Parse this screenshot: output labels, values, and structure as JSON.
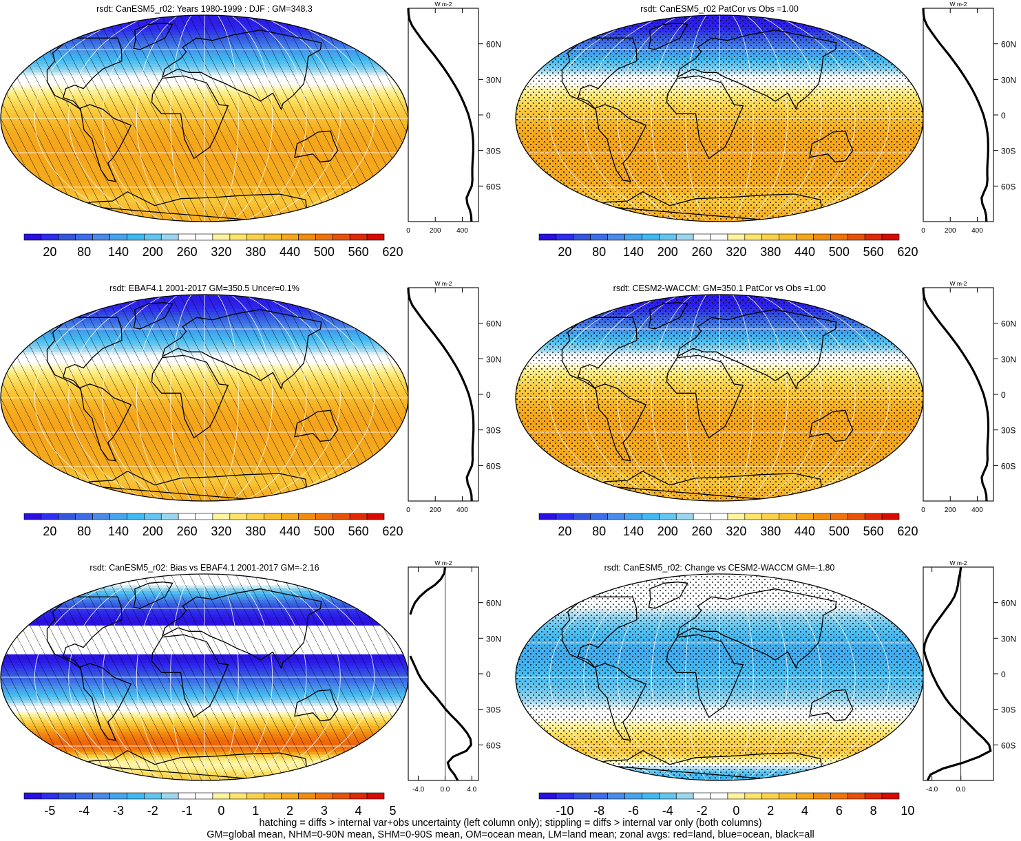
{
  "colors": {
    "abs_palette": [
      "#2a10e0",
      "#2e2ef0",
      "#3455dd",
      "#3b6ee8",
      "#4a8ae8",
      "#45a4ec",
      "#40b8f0",
      "#62c6f0",
      "#9cd6ee",
      "#ffffff",
      "#ffffff",
      "#fff3a0",
      "#fde46a",
      "#fad24a",
      "#f8bf30",
      "#f5a81c",
      "#f28c10",
      "#f0720a",
      "#e85208",
      "#e02a06",
      "#d70a04"
    ],
    "diff_palette": [
      "#2a10e0",
      "#2e2ef0",
      "#3455dd",
      "#3b6ee8",
      "#4a8ae8",
      "#45a4ec",
      "#40b8f0",
      "#62c6f0",
      "#9cd6ee",
      "#ffffff",
      "#ffffff",
      "#fff3a0",
      "#fde46a",
      "#fad24a",
      "#f8bf30",
      "#f5a81c",
      "#f28c10",
      "#f0720a",
      "#e85208",
      "#e02a06",
      "#d70a04"
    ]
  },
  "chart_data": [
    {
      "id": "model",
      "type": "heatmap",
      "title": "rsdt: CanESM5_r02: Years 1980-1999 : DJF : GM=348.3",
      "overlay": "hatching",
      "colorbar": {
        "ticks": [
          "20",
          "80",
          "140",
          "200",
          "260",
          "320",
          "380",
          "440",
          "500",
          "560",
          "620"
        ],
        "min": -10,
        "max": 640
      },
      "zonal": {
        "units": "W m-2",
        "x_ticks": [
          "0",
          "200",
          "400"
        ],
        "xlim": [
          0,
          520
        ],
        "y_ticks": [
          "60N",
          "30N",
          "0",
          "30S",
          "60S"
        ],
        "lat": [
          90,
          85,
          80,
          75,
          70,
          65,
          60,
          55,
          50,
          45,
          40,
          35,
          30,
          25,
          20,
          15,
          10,
          5,
          0,
          -5,
          -10,
          -15,
          -20,
          -25,
          -30,
          -35,
          -40,
          -45,
          -50,
          -55,
          -60,
          -65,
          -70,
          -75,
          -80,
          -85,
          -90
        ],
        "values": [
          0,
          2,
          10,
          30,
          60,
          92,
          125,
          160,
          195,
          228,
          260,
          290,
          318,
          345,
          370,
          392,
          412,
          430,
          446,
          458,
          468,
          475,
          479,
          481,
          481,
          479,
          476,
          474,
          474,
          475,
          470,
          450,
          432,
          438,
          456,
          466,
          468
        ]
      }
    },
    {
      "id": "model_vs_cesm_map",
      "type": "heatmap",
      "title": "rsdt: CanESM5_r02 PatCor vs Obs =1.00",
      "overlay": "stippling",
      "colorbar": {
        "ticks": [
          "20",
          "80",
          "140",
          "200",
          "260",
          "320",
          "380",
          "440",
          "500",
          "560",
          "620"
        ],
        "min": -10,
        "max": 640
      },
      "zonal": {
        "units": "W m-2",
        "x_ticks": [
          "0",
          "200",
          "400"
        ],
        "xlim": [
          0,
          520
        ],
        "y_ticks": [
          "60N",
          "30N",
          "0",
          "30S",
          "60S"
        ],
        "lat": [
          90,
          85,
          80,
          75,
          70,
          65,
          60,
          55,
          50,
          45,
          40,
          35,
          30,
          25,
          20,
          15,
          10,
          5,
          0,
          -5,
          -10,
          -15,
          -20,
          -25,
          -30,
          -35,
          -40,
          -45,
          -50,
          -55,
          -60,
          -65,
          -70,
          -75,
          -80,
          -85,
          -90
        ],
        "values": [
          0,
          2,
          10,
          30,
          60,
          92,
          125,
          160,
          195,
          228,
          260,
          290,
          318,
          345,
          370,
          392,
          412,
          430,
          446,
          458,
          468,
          475,
          479,
          481,
          481,
          479,
          476,
          474,
          474,
          475,
          470,
          450,
          432,
          438,
          456,
          466,
          468
        ]
      }
    },
    {
      "id": "obs",
      "type": "heatmap",
      "title": "rsdt: EBAF4.1 2001-2017 GM=350.5 Uncer=0.1%",
      "overlay": "hatching",
      "colorbar": {
        "ticks": [
          "20",
          "80",
          "140",
          "200",
          "260",
          "320",
          "380",
          "440",
          "500",
          "560",
          "620"
        ],
        "min": -10,
        "max": 640
      },
      "zonal": {
        "units": "W m-2",
        "x_ticks": [
          "0",
          "200",
          "400"
        ],
        "xlim": [
          0,
          520
        ],
        "y_ticks": [
          "60N",
          "30N",
          "0",
          "30S",
          "60S"
        ],
        "lat": [
          90,
          85,
          80,
          75,
          70,
          65,
          60,
          55,
          50,
          45,
          40,
          35,
          30,
          25,
          20,
          15,
          10,
          5,
          0,
          -5,
          -10,
          -15,
          -20,
          -25,
          -30,
          -35,
          -40,
          -45,
          -50,
          -55,
          -60,
          -65,
          -70,
          -75,
          -80,
          -85,
          -90
        ],
        "values": [
          0,
          2,
          11,
          31,
          62,
          94,
          127,
          162,
          197,
          230,
          262,
          292,
          320,
          347,
          372,
          394,
          414,
          432,
          448,
          460,
          470,
          477,
          481,
          483,
          483,
          481,
          478,
          476,
          476,
          477,
          472,
          452,
          434,
          440,
          458,
          468,
          470
        ]
      }
    },
    {
      "id": "ref_model",
      "type": "heatmap",
      "title": "rsdt: CESM2-WACCM: GM=350.1 PatCor vs Obs =1.00",
      "overlay": "stippling",
      "colorbar": {
        "ticks": [
          "20",
          "80",
          "140",
          "200",
          "260",
          "320",
          "380",
          "440",
          "500",
          "560",
          "620"
        ],
        "min": -10,
        "max": 640
      },
      "zonal": {
        "units": "W m-2",
        "x_ticks": [
          "0",
          "200",
          "400"
        ],
        "xlim": [
          0,
          520
        ],
        "y_ticks": [
          "60N",
          "30N",
          "0",
          "30S",
          "60S"
        ],
        "lat": [
          90,
          85,
          80,
          75,
          70,
          65,
          60,
          55,
          50,
          45,
          40,
          35,
          30,
          25,
          20,
          15,
          10,
          5,
          0,
          -5,
          -10,
          -15,
          -20,
          -25,
          -30,
          -35,
          -40,
          -45,
          -50,
          -55,
          -60,
          -65,
          -70,
          -75,
          -80,
          -85,
          -90
        ],
        "values": [
          0,
          2,
          11,
          31,
          61,
          93,
          126,
          161,
          196,
          229,
          261,
          291,
          319,
          346,
          371,
          393,
          413,
          431,
          447,
          459,
          469,
          476,
          480,
          482,
          482,
          480,
          477,
          475,
          475,
          476,
          471,
          451,
          433,
          439,
          457,
          467,
          469
        ]
      }
    },
    {
      "id": "bias",
      "type": "heatmap",
      "title": "rsdt: CanESM5_r02: Bias vs EBAF4.1 2001-2017 GM=-2.16",
      "overlay": "hatching",
      "colorbar": {
        "ticks": [
          "-5",
          "-4",
          "-3",
          "-2",
          "-1",
          "0",
          "1",
          "2",
          "3",
          "4",
          "5"
        ],
        "min": -5.25,
        "max": 5.25
      },
      "zonal": {
        "units": "W m-2",
        "x_ticks": [
          "-4.0",
          "0.0",
          "4.0"
        ],
        "xlim": [
          -5.5,
          5
        ],
        "y_ticks": [
          "60N",
          "30N",
          "0",
          "30S",
          "60S"
        ],
        "lat": [
          90,
          85,
          80,
          75,
          70,
          65,
          60,
          55,
          50,
          45,
          40,
          35,
          30,
          25,
          20,
          15,
          10,
          5,
          0,
          -5,
          -10,
          -15,
          -20,
          -25,
          -30,
          -35,
          -40,
          -45,
          -50,
          -55,
          -60,
          -65,
          -70,
          -75,
          -80,
          -85,
          -90
        ],
        "values": [
          0,
          -0.1,
          -0.6,
          -1.5,
          -2.8,
          -3.8,
          -4.5,
          -4.9,
          -5.2,
          null,
          null,
          null,
          null,
          null,
          null,
          -5.2,
          -4.8,
          -4.4,
          -4.0,
          -3.5,
          -2.8,
          -2.1,
          -1.3,
          -0.6,
          0.1,
          0.9,
          1.8,
          2.6,
          3.3,
          3.8,
          3.9,
          3.2,
          1.2,
          0.4,
          0.7,
          1.4,
          1.9
        ]
      }
    },
    {
      "id": "change",
      "type": "heatmap",
      "title": "rsdt: CanESM5_r02: Change vs CESM2-WACCM GM=-1.80",
      "overlay": "stippling",
      "colorbar": {
        "ticks": [
          "-10",
          "-8",
          "-6",
          "-4",
          "-2",
          "0",
          "2",
          "4",
          "6",
          "8",
          "10"
        ],
        "min": -11,
        "max": 11
      },
      "zonal": {
        "units": "W m-2",
        "x_ticks": [
          "-4.0",
          "0.0"
        ],
        "xlim": [
          -5.2,
          4.5
        ],
        "y_ticks": [
          "60N",
          "30N",
          "0",
          "30S",
          "60S"
        ],
        "lat": [
          90,
          85,
          80,
          75,
          70,
          65,
          60,
          55,
          50,
          45,
          40,
          35,
          30,
          25,
          20,
          15,
          10,
          5,
          0,
          -5,
          -10,
          -15,
          -20,
          -25,
          -30,
          -35,
          -40,
          -45,
          -50,
          -55,
          -60,
          -65,
          -70,
          -75,
          -80,
          -85,
          -90
        ],
        "values": [
          0,
          -0.1,
          -0.3,
          -0.4,
          -0.6,
          -0.9,
          -1.4,
          -2.0,
          -2.6,
          -3.2,
          -3.8,
          -4.3,
          -4.7,
          -5.0,
          -5.1,
          -4.9,
          -4.6,
          -4.3,
          -4.0,
          -3.6,
          -3.2,
          -2.7,
          -2.2,
          -1.6,
          -0.9,
          -0.1,
          0.7,
          1.5,
          2.3,
          3.2,
          3.9,
          4.1,
          2.5,
          0.3,
          -2.5,
          -4.2,
          -4.6
        ]
      }
    }
  ],
  "footer": {
    "line1": "hatching = diffs > internal var+obs uncertainty (left column only); stippling = diffs > internal var only (both columns)",
    "line2": "GM=global mean, NHM=0-90N mean, SHM=0-90S mean, OM=ocean mean, LM=land mean; zonal avgs: red=land, blue=ocean, black=all"
  }
}
